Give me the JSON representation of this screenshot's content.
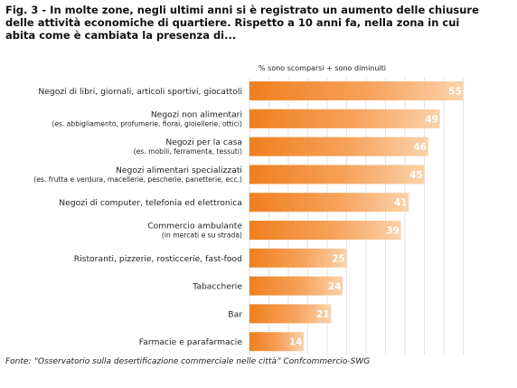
{
  "title_lines": [
    "Fig. 3 - In molte zone, negli ultimi anni si è registrato un aumento delle chiusure",
    "delle attività economiche di quartiere. Rispetto a 10 anni fa, nella zona in cui",
    "abita come è cambiata la presenza di..."
  ],
  "source": "Fonte: “Osservatorio sulla desertificazione commerciale nelle città” Confcommercio-SWG",
  "colors": {
    "bar_dark": "#f07f1f",
    "bar_light": "#fbd3ac",
    "grid": "#e3e3e3",
    "label": "#222222",
    "value": "#ffffff"
  },
  "chart_data": {
    "type": "bar",
    "orientation": "horizontal",
    "series_label": "% sono scomparsi + sono diminuiti",
    "categories": [
      [
        "Negozi di libri, giornali, articoli sportivi, giocattoli"
      ],
      [
        "Negozi non alimentari",
        "(es. abbigliamento, profumerie, fiorai, gioiellerie, ottici)"
      ],
      [
        "Negozi per la casa",
        "(es. mobili, ferramenta, tessuti)"
      ],
      [
        "Negozi alimentari specializzati",
        "(es. frutta e verdura, macellerie, pescherie, panetterie, ecc.)"
      ],
      [
        "Negozi di computer, telefonia ed elettronica"
      ],
      [
        "Commercio ambulante",
        "(in mercati e su strada)"
      ],
      [
        "Ristoranti, pizzerie, rosticcerie, fast-food"
      ],
      [
        "Tabaccherie"
      ],
      [
        "Bar"
      ],
      [
        "Farmacie e parafarmacie"
      ]
    ],
    "values": [
      55,
      49,
      46,
      45,
      41,
      39,
      25,
      24,
      21,
      14
    ],
    "data_labels": [
      "55",
      "49",
      "46",
      "45",
      "41",
      "39",
      "25",
      "24",
      "21",
      "14"
    ],
    "xlim": [
      0,
      60
    ],
    "grid": true
  }
}
